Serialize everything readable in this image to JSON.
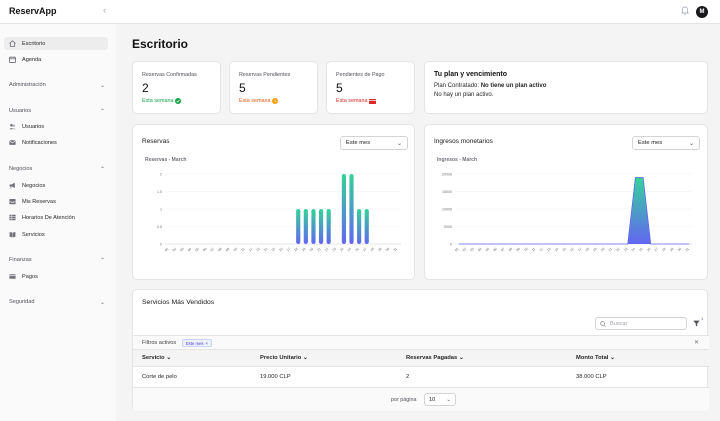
{
  "app": {
    "logo": "ReservApp",
    "avatar_initial": "M"
  },
  "sidebar": {
    "items_top": [
      {
        "label": "Escritorio",
        "icon": "home-icon",
        "active": true
      },
      {
        "label": "Agenda",
        "icon": "calendar-icon"
      }
    ],
    "sections": {
      "administracion": "Administración",
      "usuarios": "Usuarios",
      "negocios": "Negocios",
      "finanzas": "Finanzas",
      "seguridad": "Seguridad"
    },
    "usuarios_items": [
      {
        "label": "Usuarios",
        "icon": "users-icon"
      },
      {
        "label": "Notificaciones",
        "icon": "mail-icon"
      }
    ],
    "negocios_items": [
      {
        "label": "Negocios",
        "icon": "megaphone-icon"
      },
      {
        "label": "Mis Reservas",
        "icon": "inbox-icon"
      },
      {
        "label": "Horarios De Atención",
        "icon": "table-icon"
      },
      {
        "label": "Servicios",
        "icon": "book-icon"
      }
    ],
    "finanzas_items": [
      {
        "label": "Pagos",
        "icon": "credit-card-icon"
      }
    ]
  },
  "page": {
    "title": "Escritorio"
  },
  "stats": [
    {
      "label": "Reservas Confirmadas",
      "value": "2",
      "week": "Esta semana",
      "color": "#16a34a",
      "icon": "check-circle-icon"
    },
    {
      "label": "Reservas Pendientes",
      "value": "5",
      "week": "Esta semana",
      "color": "#ea580c",
      "icon": "clock-icon"
    },
    {
      "label": "Pendientes de Pago",
      "value": "5",
      "week": "Esta semana",
      "color": "#dc2626",
      "icon": "credit-card-icon"
    }
  ],
  "plan": {
    "title": "Tu plan y vencimiento",
    "contracted_label": "Plan Contratado:",
    "contracted_value": "No tiene un plan activo",
    "status": "No hay un plan activo."
  },
  "reservas_card": {
    "title": "Reservas",
    "select": "Este mes"
  },
  "ingresos_card": {
    "title": "Ingresos monetarios",
    "select": "Este mes"
  },
  "chart_data": [
    {
      "type": "bar",
      "title": "Reservas - March",
      "categories": [
        "01",
        "02",
        "03",
        "04",
        "05",
        "06",
        "07",
        "08",
        "09",
        "10",
        "11",
        "12",
        "13",
        "14",
        "15",
        "16",
        "17",
        "18",
        "19",
        "20",
        "21",
        "22",
        "23",
        "24",
        "25",
        "26",
        "27",
        "28",
        "29",
        "30",
        "31"
      ],
      "values": [
        0,
        0,
        0,
        0,
        0,
        0,
        0,
        0,
        0,
        0,
        0,
        0,
        0,
        0,
        0,
        0,
        0,
        1,
        1,
        1,
        1,
        1,
        0,
        2,
        2,
        1,
        1,
        0,
        0,
        0,
        0
      ],
      "yticks": [
        "0",
        "0.5",
        "1",
        "1.5",
        "2"
      ],
      "ylim": [
        0,
        2
      ],
      "colors": [
        "#34d399",
        "#6366f1"
      ]
    },
    {
      "type": "area",
      "title": "Ingresos - March",
      "categories": [
        "01",
        "02",
        "03",
        "04",
        "05",
        "06",
        "07",
        "08",
        "09",
        "10",
        "11",
        "12",
        "13",
        "14",
        "15",
        "16",
        "17",
        "18",
        "19",
        "20",
        "21",
        "22",
        "23",
        "24",
        "25",
        "26",
        "27",
        "28",
        "29",
        "30",
        "31"
      ],
      "values": [
        0,
        0,
        0,
        0,
        0,
        0,
        0,
        0,
        0,
        0,
        0,
        0,
        0,
        0,
        0,
        0,
        0,
        0,
        0,
        0,
        0,
        0,
        0,
        19000,
        19000,
        0,
        0,
        0,
        0,
        0,
        0
      ],
      "yticks": [
        "0",
        "5000",
        "10000",
        "15000",
        "20000"
      ],
      "ylim": [
        0,
        20000
      ],
      "colors": [
        "#34d399",
        "#6366f1"
      ]
    }
  ],
  "table": {
    "title": "Servicios Más Vendidos",
    "search_placeholder": "Buscar",
    "filter_count": "1",
    "filters_label": "Filtros activos",
    "filter_chip": "Este mes",
    "columns": [
      "Servicio",
      "Precio Unitario",
      "Reservas Pagadas",
      "Monto Total"
    ],
    "rows": [
      [
        "Corte de pelo",
        "19.000 CLP",
        "2",
        "38.000 CLP"
      ]
    ],
    "per_page_label": "por página",
    "per_page_value": "10"
  }
}
